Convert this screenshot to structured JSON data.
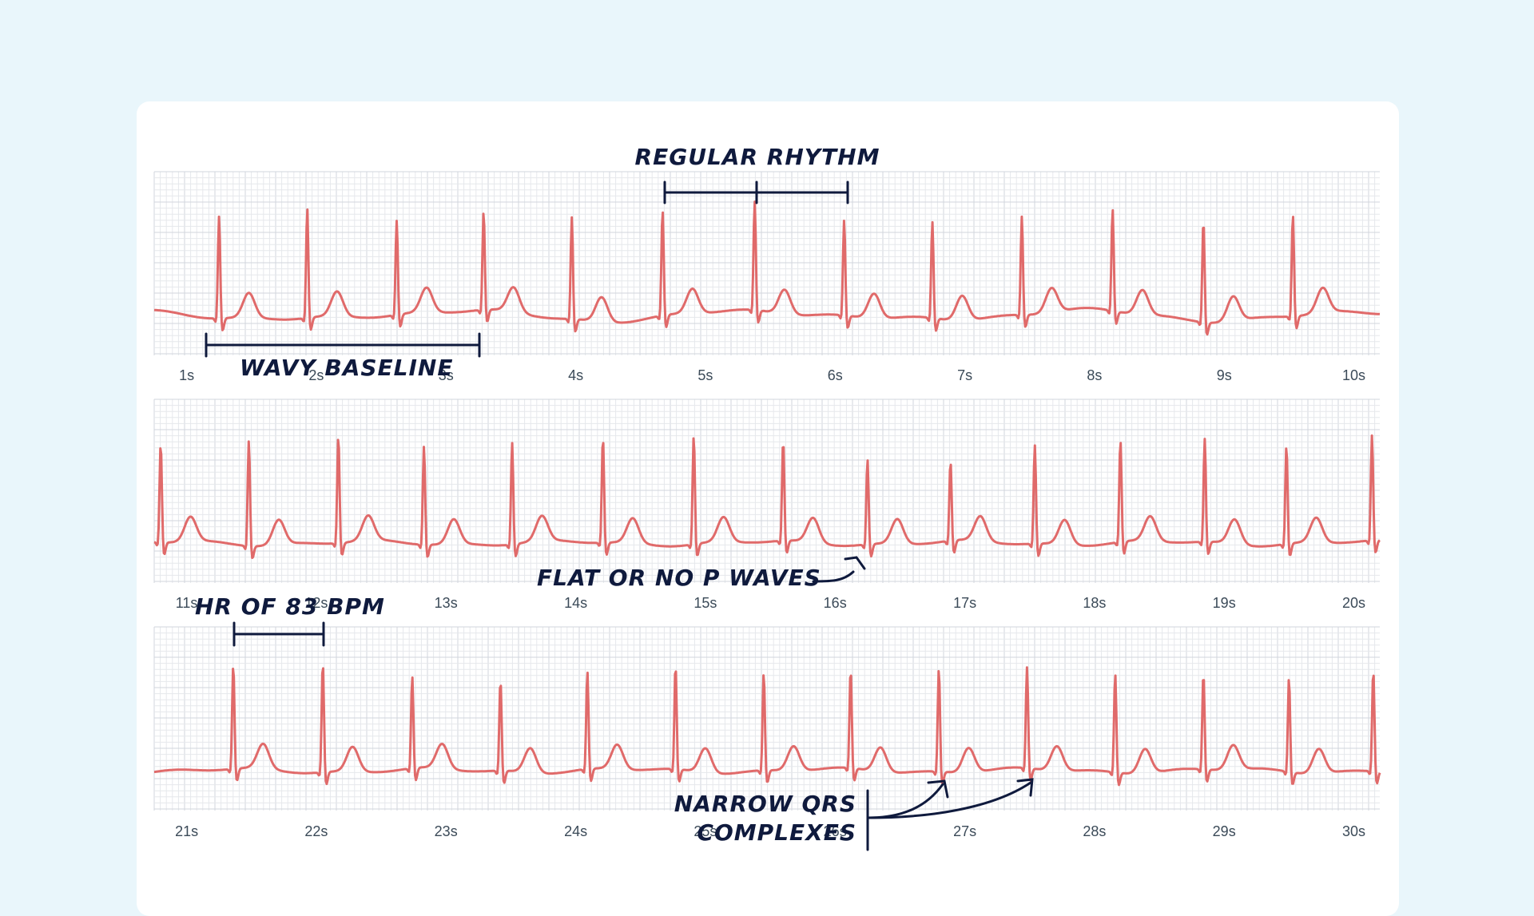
{
  "colors": {
    "background": "#e9f6fb",
    "card": "#ffffff",
    "grid_minor": "#e6e8ec",
    "grid_major": "#d2d6dc",
    "trace": "#e06a6a",
    "annotation": "#0f1a3d",
    "tick_text": "#3b4a58"
  },
  "chart_data": {
    "type": "line",
    "grid": true,
    "strips": [
      {
        "xlim": [
          0.75,
          10.2
        ],
        "tick_labels": [
          "1s",
          "2s",
          "3s",
          "4s",
          "5s",
          "6s",
          "7s",
          "8s",
          "9s",
          "10s"
        ],
        "tick_values": [
          1,
          2,
          3,
          4,
          5,
          6,
          7,
          8,
          9,
          10
        ],
        "r_peaks": [
          1.25,
          1.93,
          2.62,
          3.29,
          3.97,
          4.67,
          5.38,
          6.07,
          6.75,
          7.44,
          8.14,
          8.84,
          9.53
        ],
        "peak_heights": [
          0.93,
          1.0,
          0.86,
          0.9,
          0.93,
          0.96,
          0.99,
          0.87,
          0.88,
          0.9,
          0.93,
          0.93,
          0.93
        ]
      },
      {
        "xlim": [
          10.75,
          20.2
        ],
        "tick_labels": [
          "11s",
          "12s",
          "13s",
          "14s",
          "15s",
          "16s",
          "17s",
          "18s",
          "19s",
          "20s"
        ],
        "tick_values": [
          11,
          12,
          13,
          14,
          15,
          16,
          17,
          18,
          19,
          20
        ],
        "r_peaks": [
          10.8,
          11.48,
          12.17,
          12.83,
          13.51,
          14.21,
          14.91,
          15.6,
          16.25,
          16.89,
          17.54,
          18.2,
          18.85,
          19.48,
          20.14
        ],
        "peak_heights": [
          0.9,
          0.96,
          0.98,
          0.9,
          0.93,
          0.96,
          0.99,
          0.92,
          0.78,
          0.73,
          0.9,
          0.93,
          0.94,
          0.9,
          0.96
        ]
      },
      {
        "xlim": [
          20.75,
          30.2
        ],
        "tick_labels": [
          "21s",
          "22s",
          "23s",
          "24s",
          "25s",
          "26s",
          "27s",
          "28s",
          "29s",
          "30s"
        ],
        "tick_values": [
          21,
          22,
          23,
          24,
          25,
          26,
          27,
          28,
          29,
          30
        ],
        "r_peaks": [
          21.36,
          22.05,
          22.74,
          23.42,
          24.09,
          24.77,
          25.45,
          26.12,
          26.8,
          27.48,
          28.16,
          28.84,
          29.5,
          30.15
        ],
        "peak_heights": [
          0.95,
          1.0,
          0.84,
          0.83,
          0.89,
          0.95,
          0.89,
          0.9,
          0.94,
          0.92,
          0.9,
          0.88,
          0.86,
          0.92
        ]
      }
    ]
  },
  "annotations": {
    "regular_rhythm": "REGULAR RHYTHM",
    "wavy_baseline": "WAVY BASELINE",
    "flat_p": "FLAT OR NO P WAVES",
    "hr": "HR OF 83 BPM",
    "narrow_qrs_line1": "NARROW QRS",
    "narrow_qrs_line2": "COMPLEXES"
  }
}
